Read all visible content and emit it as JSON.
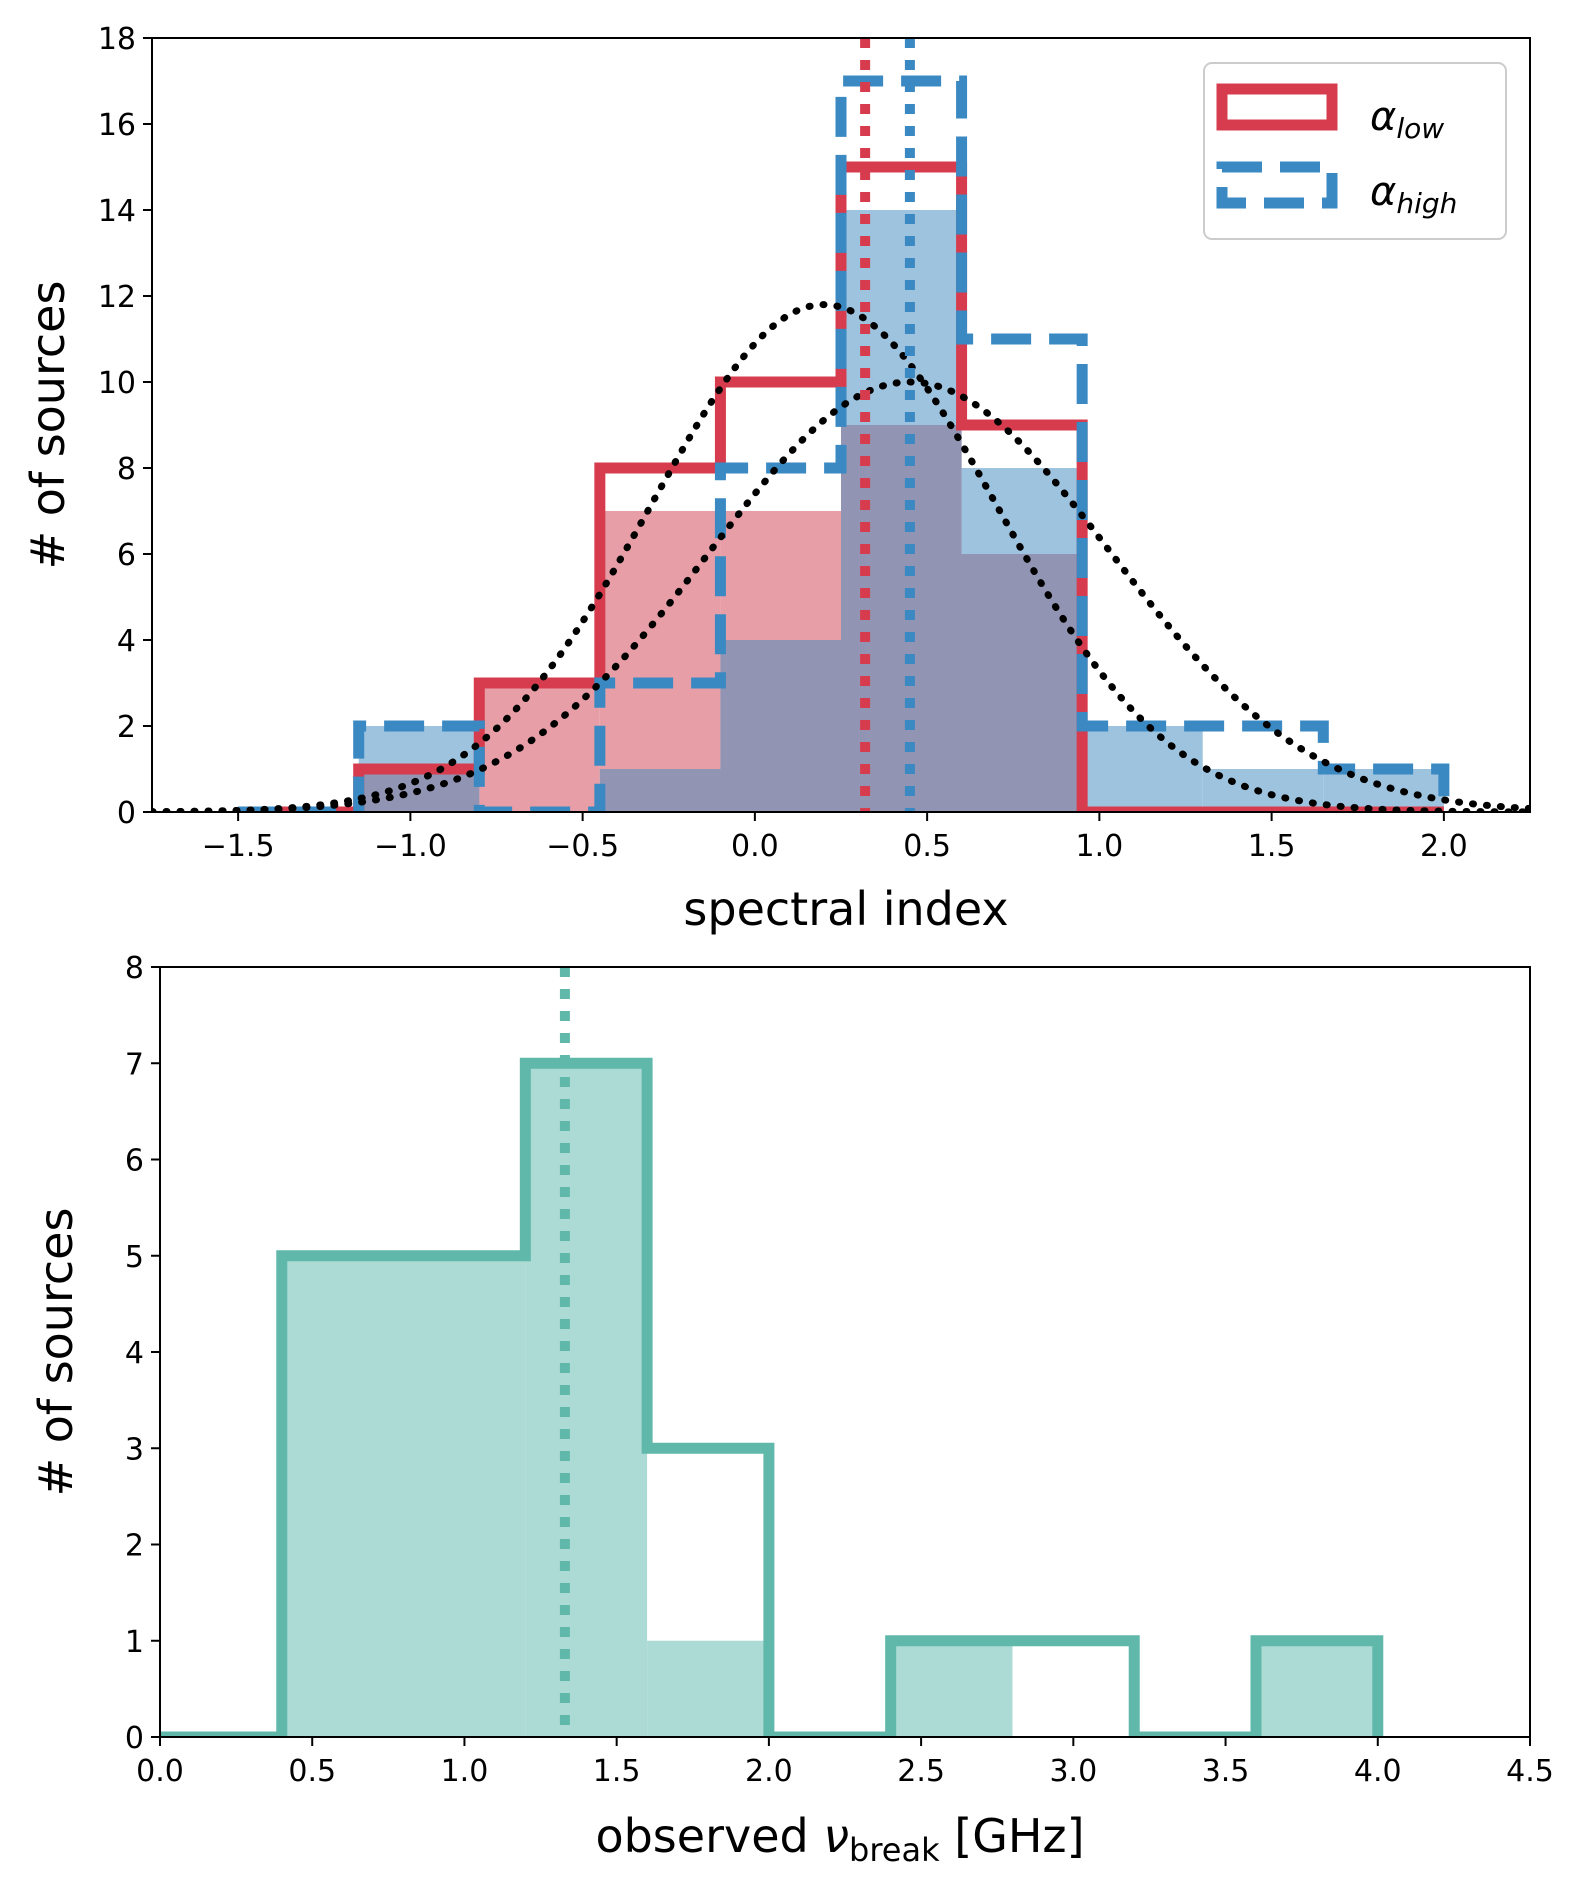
{
  "chart_data": [
    {
      "type": "bar",
      "xlabel": "spectral index",
      "ylabel": "# of sources",
      "xlim": [
        -1.75,
        2.25
      ],
      "ylim": [
        0,
        18
      ],
      "xticks": [
        "−1.5",
        "−1.0",
        "−0.5",
        "0.0",
        "0.5",
        "1.0",
        "1.5",
        "2.0"
      ],
      "xtick_values": [
        -1.5,
        -1.0,
        -0.5,
        0.0,
        0.5,
        1.0,
        1.5,
        2.0
      ],
      "yticks": [
        "0",
        "2",
        "4",
        "6",
        "8",
        "10",
        "12",
        "14",
        "16",
        "18"
      ],
      "ytick_values": [
        0,
        2,
        4,
        6,
        8,
        10,
        12,
        14,
        16,
        18
      ],
      "legend": [
        {
          "label": "α",
          "sub": "low",
          "style": "solid",
          "color": "#d63c4d"
        },
        {
          "label": "α",
          "sub": "high",
          "style": "dashed",
          "color": "#3a89c2"
        }
      ],
      "step_series": [
        {
          "name": "α_low",
          "style": "solid",
          "color": "#d63c4d",
          "edges": [
            -1.5,
            -1.15,
            -0.8,
            -0.45,
            -0.1,
            0.25,
            0.6,
            0.95,
            1.3,
            1.65,
            2.0
          ],
          "counts": [
            0,
            1,
            3,
            8,
            10,
            15,
            9,
            0,
            0,
            0
          ]
        },
        {
          "name": "α_high",
          "style": "dashed",
          "color": "#3a89c2",
          "edges": [
            -1.5,
            -1.15,
            -0.8,
            -0.45,
            -0.1,
            0.25,
            0.6,
            0.95,
            1.3,
            1.65,
            2.0
          ],
          "counts": [
            0,
            2,
            0,
            3,
            8,
            17,
            11,
            2,
            2,
            1
          ]
        }
      ],
      "filled_series": [
        {
          "name": "low-filled",
          "color": "#e89ea7",
          "edges": [
            -1.5,
            -1.15,
            -0.8,
            -0.45,
            -0.1,
            0.25,
            0.6,
            0.95,
            1.3,
            1.65,
            2.0
          ],
          "counts": [
            0,
            1,
            3,
            7,
            7,
            9,
            6,
            0,
            0,
            0
          ]
        },
        {
          "name": "high-filled",
          "color": "#9dc3de",
          "edges": [
            -1.5,
            -1.15,
            -0.8,
            -0.45,
            -0.1,
            0.25,
            0.6,
            0.95,
            1.3,
            1.65,
            2.0
          ],
          "counts": [
            0,
            2,
            0,
            1,
            4,
            14,
            8,
            2,
            1,
            1
          ]
        }
      ],
      "overlap_color": "#9194b2",
      "gaussian_fits": [
        {
          "mu": 0.2,
          "sigma": 0.5,
          "amp": 11.8
        },
        {
          "mu": 0.45,
          "sigma": 0.58,
          "amp": 10.0
        }
      ],
      "vlines": [
        {
          "x": 0.32,
          "color": "#d63c4d"
        },
        {
          "x": 0.45,
          "color": "#3a89c2"
        }
      ]
    },
    {
      "type": "bar",
      "xlabel_main": "observed ",
      "xlabel_symbol": "ν",
      "xlabel_sub": "break",
      "xlabel_unit": " [GHz]",
      "ylabel": "# of sources",
      "xlim": [
        0,
        4.5
      ],
      "ylim": [
        0,
        8
      ],
      "xticks": [
        "0.0",
        "0.5",
        "1.0",
        "1.5",
        "2.0",
        "2.5",
        "3.0",
        "3.5",
        "4.0",
        "4.5"
      ],
      "xtick_values": [
        0,
        0.5,
        1.0,
        1.5,
        2.0,
        2.5,
        3.0,
        3.5,
        4.0,
        4.5
      ],
      "yticks": [
        "0",
        "1",
        "2",
        "3",
        "4",
        "5",
        "6",
        "7",
        "8"
      ],
      "ytick_values": [
        0,
        1,
        2,
        3,
        4,
        5,
        6,
        7,
        8
      ],
      "step_series": [
        {
          "name": "break-step",
          "color": "#5fb8aa",
          "edges": [
            0.0,
            0.4,
            1.2,
            1.6,
            2.0,
            2.4,
            3.2,
            3.6,
            4.0
          ],
          "counts": [
            0,
            5,
            7,
            3,
            0,
            1,
            0,
            1
          ]
        }
      ],
      "filled_series": [
        {
          "name": "break-filled",
          "color": "#acdad4",
          "edges": [
            0.0,
            0.4,
            1.2,
            1.6,
            2.0,
            2.4,
            2.8,
            3.2,
            3.6,
            4.0
          ],
          "counts": [
            0,
            5,
            7,
            1,
            0,
            1,
            0,
            0,
            1
          ]
        }
      ],
      "vlines": [
        {
          "x": 1.33,
          "color": "#5fb8aa"
        }
      ]
    }
  ]
}
